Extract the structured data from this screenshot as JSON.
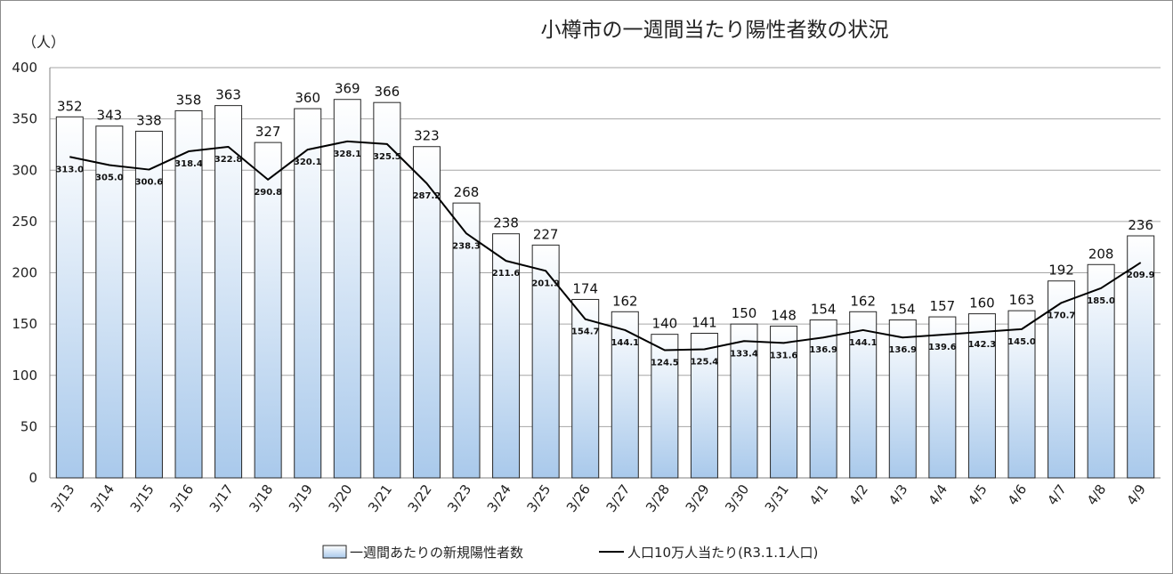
{
  "chart_data": {
    "type": "bar",
    "title": "小樽市の一週間当たり陽性者数の状況",
    "y_unit_label": "（人）",
    "categories": [
      "3/13",
      "3/14",
      "3/15",
      "3/16",
      "3/17",
      "3/18",
      "3/19",
      "3/20",
      "3/21",
      "3/22",
      "3/23",
      "3/24",
      "3/25",
      "3/26",
      "3/27",
      "3/28",
      "3/29",
      "3/30",
      "3/31",
      "4/1",
      "4/2",
      "4/3",
      "4/4",
      "4/5",
      "4/6",
      "4/7",
      "4/8",
      "4/9"
    ],
    "ylim": [
      0,
      400
    ],
    "yticks": [
      0,
      50,
      100,
      150,
      200,
      250,
      300,
      350,
      400
    ],
    "grid": true,
    "legend_position": "bottom",
    "series": [
      {
        "name": "一週間あたりの新規陽性者数",
        "type": "bar",
        "values": [
          352,
          343,
          338,
          358,
          363,
          327,
          360,
          369,
          366,
          323,
          268,
          238,
          227,
          174,
          162,
          140,
          141,
          150,
          148,
          154,
          162,
          154,
          157,
          160,
          163,
          192,
          208,
          236
        ],
        "color_top": "#ffffff",
        "color_bottom": "#a9c9eb"
      },
      {
        "name": "人口10万人当たり(R3.1.1人口)",
        "type": "line",
        "values": [
          313.0,
          305.0,
          300.6,
          318.4,
          322.8,
          290.8,
          320.1,
          328.1,
          325.5,
          287.2,
          238.3,
          211.6,
          201.9,
          154.7,
          144.1,
          124.5,
          125.4,
          133.4,
          131.6,
          136.9,
          144.1,
          136.9,
          139.6,
          142.3,
          145.0,
          170.7,
          185.0,
          209.9
        ],
        "labels": [
          "313.0",
          "305.0",
          "300.6",
          "318.4",
          "322.8",
          "290.8",
          "320.1",
          "328.1",
          "325.5",
          "287.2",
          "238.3",
          "211.6",
          "201.9",
          "154.7",
          "144.1",
          "124.5",
          "125.4",
          "133.4",
          "131.6",
          "136.9",
          "144.1",
          "136.9",
          "139.6",
          "142.3",
          "145.0",
          "170.7",
          "185.0",
          "209.9"
        ],
        "color": "#000000"
      }
    ]
  }
}
